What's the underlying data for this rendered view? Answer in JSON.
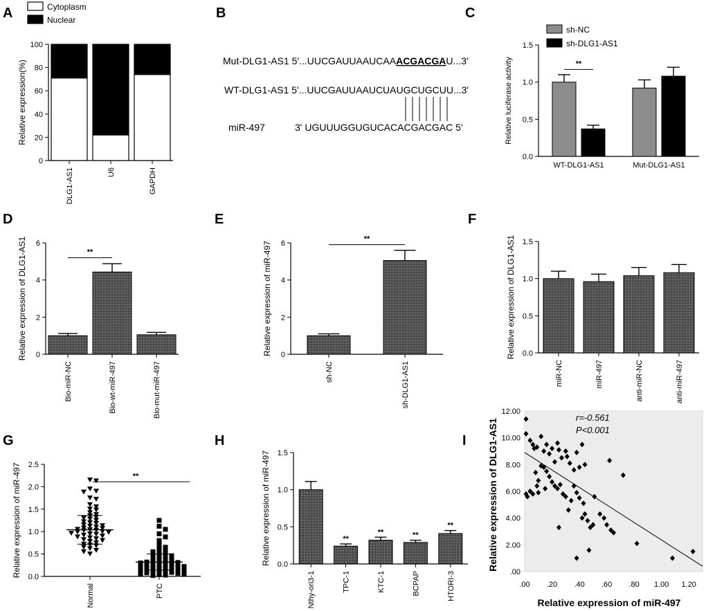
{
  "chart_data": [
    {
      "panel": "A",
      "type": "bar",
      "stacked": true,
      "ylabel": "Relative expression(%)",
      "ylim": [
        0,
        100
      ],
      "yticks": [
        "0",
        "20",
        "40",
        "60",
        "80",
        "100"
      ],
      "categories": [
        "DLG1-AS1",
        "U6",
        "GAPDH"
      ],
      "series": [
        {
          "name": "Cytoplasm",
          "values": [
            71,
            22,
            74
          ],
          "color": "#ffffff"
        },
        {
          "name": "Nuclear",
          "values": [
            29,
            78,
            26
          ],
          "color": "#000000"
        }
      ],
      "legend": "top-left"
    },
    {
      "panel": "C",
      "type": "bar",
      "ylabel": "Relative luciferase activity",
      "ylim": [
        0,
        1.5
      ],
      "yticks": [
        "0.0",
        "0.5",
        "1.0",
        "1.5"
      ],
      "categories": [
        "WT-DLG1-AS1",
        "Mut-DLG1-AS1"
      ],
      "series": [
        {
          "name": "sh-NC",
          "values": [
            1.0,
            0.92
          ],
          "errors": [
            0.1,
            0.11
          ],
          "color": "#8c8c8c"
        },
        {
          "name": "sh-DLG1-AS1",
          "values": [
            0.37,
            1.08
          ],
          "errors": [
            0.05,
            0.12
          ],
          "color": "#000000"
        }
      ],
      "annotations": [
        "**"
      ],
      "legend": "top-left"
    },
    {
      "panel": "D",
      "type": "bar",
      "ylabel": "Relative expression of DLG1-AS1",
      "ylim": [
        0,
        6
      ],
      "yticks": [
        "0",
        "2",
        "4",
        "6"
      ],
      "categories": [
        "Bio-miR-NC",
        "Bio-wt-miR-497",
        "Bio-mut-miR-497"
      ],
      "values": [
        1.0,
        4.43,
        1.05
      ],
      "errors": [
        0.12,
        0.45,
        0.13
      ],
      "annotations": [
        "**"
      ]
    },
    {
      "panel": "E",
      "type": "bar",
      "ylabel": "Relative expression of miR-497",
      "ylim": [
        0,
        6
      ],
      "yticks": [
        "0",
        "2",
        "4",
        "6"
      ],
      "categories": [
        "sh-NC",
        "sh-DLG1-AS1"
      ],
      "values": [
        1.0,
        5.05
      ],
      "errors": [
        0.1,
        0.55
      ],
      "annotations": [
        "**"
      ]
    },
    {
      "panel": "F",
      "type": "bar",
      "ylabel": "Relative expression of DLG1-AS1",
      "ylim": [
        0,
        1.5
      ],
      "yticks": [
        "0.0",
        "0.5",
        "1.0",
        "1.5"
      ],
      "categories": [
        "miR-NC",
        "miR-497",
        "anti-miR-NC",
        "anti-miR-497"
      ],
      "values": [
        1.0,
        0.96,
        1.04,
        1.08
      ],
      "errors": [
        0.1,
        0.1,
        0.11,
        0.11
      ]
    },
    {
      "panel": "G",
      "type": "scatter",
      "ylabel": "Relative expression of miR-497",
      "ylim": [
        0,
        2.5
      ],
      "yticks": [
        "0.0",
        "0.5",
        "1.0",
        "1.5",
        "2.0",
        "2.5"
      ],
      "categories": [
        "Normal",
        "PTC"
      ],
      "groups": [
        {
          "name": "Normal",
          "marker": "triangle-down",
          "mean": 1.04,
          "sd": 0.32,
          "values": [
            2.15,
            2.13,
            1.95,
            1.9,
            1.88,
            1.75,
            1.72,
            1.6,
            1.55,
            1.5,
            1.48,
            1.42,
            1.38,
            1.35,
            1.32,
            1.3,
            1.28,
            1.25,
            1.22,
            1.2,
            1.18,
            1.15,
            1.13,
            1.12,
            1.1,
            1.08,
            1.07,
            1.05,
            1.04,
            1.03,
            1.02,
            1.0,
            0.99,
            0.98,
            0.96,
            0.95,
            0.94,
            0.92,
            0.9,
            0.88,
            0.86,
            0.84,
            0.82,
            0.8,
            0.78,
            0.75,
            0.72,
            0.7,
            0.68,
            0.65,
            0.62,
            0.58,
            0.55,
            0.5
          ]
        },
        {
          "name": "PTC",
          "marker": "square",
          "mean": 0.32,
          "sd": 0.18,
          "values": [
            1.25,
            1.12,
            1.05,
            0.95,
            0.88,
            0.8,
            0.75,
            0.7,
            0.65,
            0.62,
            0.58,
            0.55,
            0.52,
            0.5,
            0.48,
            0.46,
            0.44,
            0.42,
            0.4,
            0.38,
            0.36,
            0.35,
            0.34,
            0.33,
            0.32,
            0.31,
            0.3,
            0.29,
            0.28,
            0.27,
            0.26,
            0.25,
            0.24,
            0.23,
            0.22,
            0.2,
            0.19,
            0.18,
            0.17,
            0.16,
            0.15,
            0.14,
            0.13,
            0.12,
            0.11,
            0.1,
            0.09,
            0.08,
            0.07,
            0.06,
            0.05,
            0.04,
            0.03,
            0.02
          ]
        }
      ],
      "annotations": [
        "**"
      ]
    },
    {
      "panel": "H",
      "type": "bar",
      "ylabel": "Relative expression of miR-497",
      "ylim": [
        0,
        1.5
      ],
      "yticks": [
        "0.0",
        "0.5",
        "1.0",
        "1.5"
      ],
      "categories": [
        "Nthy-ori3-1",
        "TPC-1",
        "KTC-1",
        "BCPAP",
        "HTORI-3"
      ],
      "values": [
        1.0,
        0.24,
        0.32,
        0.29,
        0.41
      ],
      "errors": [
        0.11,
        0.03,
        0.04,
        0.03,
        0.04
      ],
      "annotations": [
        "",
        "**",
        "**",
        "**",
        "**"
      ]
    },
    {
      "panel": "I",
      "type": "scatter",
      "xlabel": "Relative expression of miR-497",
      "ylabel": "Relative expression of DLG1-AS1",
      "xlim": [
        0,
        1.3
      ],
      "ylim": [
        0,
        12
      ],
      "xticks": [
        ".00",
        ".20",
        ".40",
        ".60",
        ".80",
        "1.00",
        "1.20"
      ],
      "yticks": [
        ".00",
        "2.00",
        "4.00",
        "6.00",
        "8.00",
        "10.00",
        "12.00"
      ],
      "stat_r": "r=-0.561",
      "stat_p": "P<0.001",
      "fit": {
        "x0": 0.0,
        "y0": 8.9,
        "x1": 1.3,
        "y1": 0.4
      },
      "points": [
        [
          0.01,
          11.4
        ],
        [
          0.01,
          10.3
        ],
        [
          0.04,
          9.8
        ],
        [
          0.06,
          9.5
        ],
        [
          0.07,
          9.2
        ],
        [
          0.09,
          9.3
        ],
        [
          0.12,
          10.1
        ],
        [
          0.14,
          9.0
        ],
        [
          0.16,
          9.5
        ],
        [
          0.18,
          8.8
        ],
        [
          0.2,
          9.2
        ],
        [
          0.22,
          8.2
        ],
        [
          0.24,
          9.6
        ],
        [
          0.25,
          9.1
        ],
        [
          0.27,
          8.5
        ],
        [
          0.3,
          9.0
        ],
        [
          0.31,
          8.6
        ],
        [
          0.33,
          8.1
        ],
        [
          0.36,
          7.6
        ],
        [
          0.38,
          8.9
        ],
        [
          0.4,
          7.8
        ],
        [
          0.42,
          9.5
        ],
        [
          0.44,
          8.0
        ],
        [
          0.12,
          7.9
        ],
        [
          0.14,
          7.8
        ],
        [
          0.16,
          7.5
        ],
        [
          0.18,
          7.1
        ],
        [
          0.2,
          6.7
        ],
        [
          0.22,
          6.4
        ],
        [
          0.24,
          6.2
        ],
        [
          0.08,
          7.4
        ],
        [
          0.1,
          6.8
        ],
        [
          0.01,
          5.8
        ],
        [
          0.02,
          5.6
        ],
        [
          0.04,
          6.0
        ],
        [
          0.06,
          5.8
        ],
        [
          0.09,
          6.4
        ],
        [
          0.1,
          5.9
        ],
        [
          0.15,
          6.2
        ],
        [
          0.26,
          6.5
        ],
        [
          0.28,
          5.8
        ],
        [
          0.3,
          5.6
        ],
        [
          0.32,
          4.6
        ],
        [
          0.34,
          5.3
        ],
        [
          0.36,
          6.4
        ],
        [
          0.38,
          5.9
        ],
        [
          0.4,
          5.5
        ],
        [
          0.42,
          4.0
        ],
        [
          0.44,
          4.3
        ],
        [
          0.46,
          3.8
        ],
        [
          0.48,
          3.3
        ],
        [
          0.5,
          3.5
        ],
        [
          0.55,
          4.3
        ],
        [
          0.58,
          4.0
        ],
        [
          0.6,
          3.5
        ],
        [
          0.63,
          3.1
        ],
        [
          0.65,
          2.9
        ],
        [
          0.62,
          8.3
        ],
        [
          0.72,
          7.2
        ],
        [
          0.43,
          5.1
        ],
        [
          0.25,
          3.3
        ],
        [
          0.38,
          1.0
        ],
        [
          0.47,
          1.6
        ],
        [
          0.82,
          2.1
        ],
        [
          1.08,
          1.0
        ],
        [
          1.23,
          1.5
        ],
        [
          0.51,
          5.6
        ]
      ]
    }
  ],
  "panel_labels": [
    "A",
    "B",
    "C",
    "D",
    "E",
    "F",
    "G",
    "H",
    "I"
  ],
  "sequences": {
    "mut_name": "Mut-DLG1-AS1",
    "mut_prefix": " 5'...UUCGAUUAAUCAA",
    "mut_bold": "ACGACGA",
    "mut_suffix": "U...3'",
    "wt_name": "WT-DLG1-AS1",
    "wt_seq": " 5'...UUCGAUUAAUCUAUGCUGCUU...3'",
    "mir_name": "miR-497",
    "mir_seq": "3'  UGUUUGGUGUCACACGACGAC   5'"
  }
}
